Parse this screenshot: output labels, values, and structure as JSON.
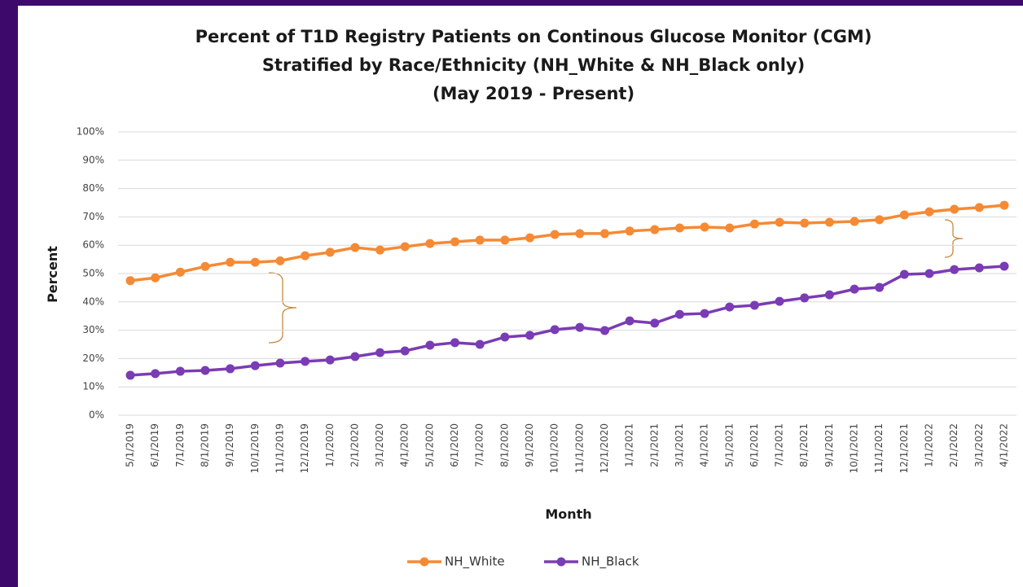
{
  "chart_data": {
    "type": "line",
    "title": [
      "Percent of T1D Registry Patients on Continous Glucose Monitor (CGM)",
      "Stratified by Race/Ethnicity (NH_White & NH_Black only)",
      "(May 2019 - Present)"
    ],
    "x_label": "Month",
    "y_label": "Percent",
    "categories": [
      "5/1/2019",
      "6/1/2019",
      "7/1/2019",
      "8/1/2019",
      "9/1/2019",
      "10/1/2019",
      "11/1/2019",
      "12/1/2019",
      "1/1/2020",
      "2/1/2020",
      "3/1/2020",
      "4/1/2020",
      "5/1/2020",
      "6/1/2020",
      "7/1/2020",
      "8/1/2020",
      "9/1/2020",
      "10/1/2020",
      "11/1/2020",
      "12/1/2020",
      "1/1/2021",
      "2/1/2021",
      "3/1/2021",
      "4/1/2021",
      "5/1/2021",
      "6/1/2021",
      "7/1/2021",
      "8/1/2021",
      "9/1/2021",
      "10/1/2021",
      "11/1/2021",
      "12/1/2021",
      "1/1/2022",
      "2/1/2022",
      "3/1/2022",
      "4/1/2022"
    ],
    "series": [
      {
        "name": "NH_White",
        "color": "#f58a35",
        "values": [
          47.5,
          48.5,
          50.5,
          52.5,
          54,
          54,
          54.5,
          56.3,
          57.5,
          59.2,
          58.3,
          59.5,
          60.6,
          61.2,
          61.8,
          61.8,
          62.6,
          63.8,
          64.1,
          64.1,
          65,
          65.5,
          66.1,
          66.4,
          66.1,
          67.5,
          68.1,
          67.8,
          68.1,
          68.4,
          69,
          70.7,
          71.8,
          72.7,
          73.3,
          74.1
        ]
      },
      {
        "name": "NH_Black",
        "color": "#7a3cb4",
        "values": [
          14.1,
          14.7,
          15.5,
          15.8,
          16.4,
          17.5,
          18.4,
          19,
          19.5,
          20.7,
          22.1,
          22.7,
          24.7,
          25.6,
          25,
          27.6,
          28.2,
          30.2,
          31,
          29.9,
          33.3,
          32.5,
          35.6,
          35.9,
          38.2,
          38.8,
          40.2,
          41.4,
          42.5,
          44.5,
          45.1,
          49.7,
          50,
          51.4,
          52,
          52.6
        ]
      }
    ],
    "ylim": [
      0,
      100
    ],
    "yticks": [
      {
        "value": 0,
        "label": "0%"
      },
      {
        "value": 10,
        "label": "10%"
      },
      {
        "value": 20,
        "label": "20%"
      },
      {
        "value": 30,
        "label": "30%"
      },
      {
        "value": 40,
        "label": "40%"
      },
      {
        "value": 50,
        "label": "50%"
      },
      {
        "value": 60,
        "label": "60%"
      },
      {
        "value": 70,
        "label": "70%"
      },
      {
        "value": 80,
        "label": "80%"
      },
      {
        "value": 90,
        "label": "90%"
      },
      {
        "value": 100,
        "label": "100%"
      }
    ],
    "grid": true,
    "legend": "bottom"
  }
}
